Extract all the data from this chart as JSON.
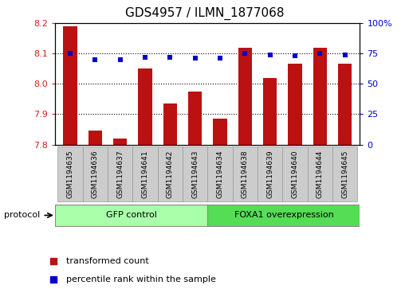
{
  "title": "GDS4957 / ILMN_1877068",
  "samples": [
    "GSM1194635",
    "GSM1194636",
    "GSM1194637",
    "GSM1194641",
    "GSM1194642",
    "GSM1194643",
    "GSM1194634",
    "GSM1194638",
    "GSM1194639",
    "GSM1194640",
    "GSM1194644",
    "GSM1194645"
  ],
  "bar_values": [
    8.19,
    7.845,
    7.82,
    8.05,
    7.935,
    7.975,
    7.885,
    8.12,
    8.02,
    8.065,
    8.12,
    8.065
  ],
  "dot_values": [
    75,
    70,
    70,
    72,
    72,
    71,
    71,
    75,
    74,
    73,
    75,
    74
  ],
  "groups": [
    {
      "label": "GFP control",
      "start": 0,
      "end": 6,
      "color": "#aaffaa"
    },
    {
      "label": "FOXA1 overexpression",
      "start": 6,
      "end": 12,
      "color": "#55dd55"
    }
  ],
  "ylim_left": [
    7.8,
    8.2
  ],
  "ylim_right": [
    0,
    100
  ],
  "yticks_left": [
    7.8,
    7.9,
    8.0,
    8.1,
    8.2
  ],
  "yticks_right": [
    0,
    25,
    50,
    75,
    100
  ],
  "bar_color": "#bb1111",
  "dot_color": "#0000cc",
  "bar_width": 0.55,
  "background_color": "#ffffff",
  "legend_items": [
    {
      "label": "transformed count",
      "color": "#bb1111"
    },
    {
      "label": "percentile rank within the sample",
      "color": "#0000cc"
    }
  ],
  "protocol_label": "protocol",
  "ylabel_left_color": "#cc2222",
  "ylabel_right_color": "#0000cc",
  "tick_box_color": "#cccccc",
  "tick_box_edge_color": "#999999"
}
